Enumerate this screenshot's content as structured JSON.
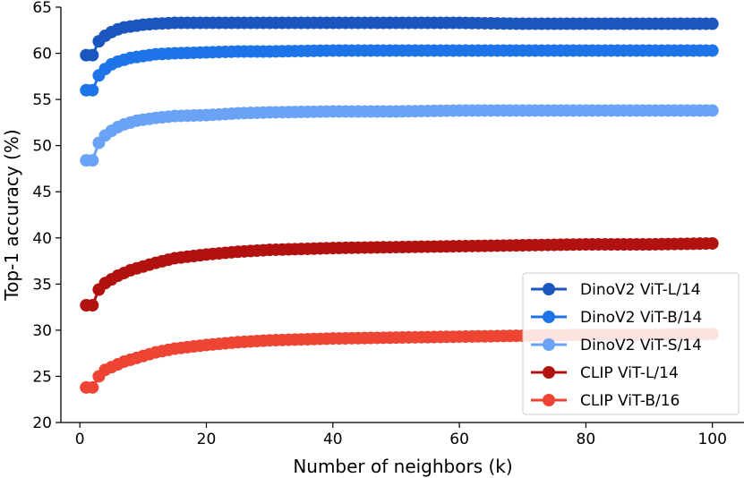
{
  "chart_data": {
    "type": "line",
    "title": "",
    "xlabel": "Number of neighbors (k)",
    "ylabel": "Top-1 accuracy (%)",
    "xlim": [
      -3,
      105
    ],
    "ylim": [
      20,
      65
    ],
    "xticks": [
      0,
      20,
      40,
      60,
      80,
      100
    ],
    "yticks": [
      20,
      25,
      30,
      35,
      40,
      45,
      50,
      55,
      60,
      65
    ],
    "x_tick_labels": [
      "0",
      "20",
      "40",
      "60",
      "80",
      "100"
    ],
    "y_tick_labels": [
      "20",
      "25",
      "30",
      "35",
      "40",
      "45",
      "50",
      "55",
      "60",
      "65"
    ],
    "grid": false,
    "legend_position": "bottom-right",
    "k_values": [
      1,
      2,
      3,
      4,
      5,
      6,
      7,
      8,
      9,
      10,
      12,
      15,
      20,
      25,
      30,
      40,
      50,
      60,
      70,
      80,
      90,
      100
    ],
    "series": [
      {
        "name": "DinoV2 ViT-L/14",
        "color": "#1a56be",
        "values": [
          59.8,
          59.8,
          61.3,
          61.9,
          62.3,
          62.6,
          62.8,
          62.9,
          63.0,
          63.1,
          63.2,
          63.3,
          63.3,
          63.3,
          63.3,
          63.3,
          63.3,
          63.3,
          63.2,
          63.2,
          63.2,
          63.2
        ]
      },
      {
        "name": "DinoV2 ViT-B/14",
        "color": "#1c74e8",
        "values": [
          56.0,
          56.0,
          57.6,
          58.3,
          58.8,
          59.1,
          59.3,
          59.5,
          59.6,
          59.7,
          59.9,
          60.0,
          60.1,
          60.2,
          60.2,
          60.3,
          60.3,
          60.3,
          60.3,
          60.3,
          60.3,
          60.3
        ]
      },
      {
        "name": "DinoV2 ViT-S/14",
        "color": "#6aa3f5",
        "values": [
          48.4,
          48.4,
          50.3,
          51.1,
          51.6,
          52.0,
          52.3,
          52.5,
          52.7,
          52.8,
          53.0,
          53.2,
          53.3,
          53.5,
          53.6,
          53.7,
          53.7,
          53.8,
          53.8,
          53.8,
          53.8,
          53.8
        ]
      },
      {
        "name": "CLIP ViT-L/14",
        "color": "#b1120f",
        "values": [
          32.7,
          32.7,
          34.4,
          35.1,
          35.5,
          35.9,
          36.2,
          36.5,
          36.7,
          36.9,
          37.3,
          37.8,
          38.2,
          38.5,
          38.7,
          38.9,
          39.0,
          39.1,
          39.2,
          39.3,
          39.3,
          39.4
        ]
      },
      {
        "name": "CLIP ViT-B/16",
        "color": "#ee4433",
        "values": [
          23.8,
          23.8,
          25.0,
          25.7,
          26.0,
          26.3,
          26.6,
          26.8,
          27.0,
          27.2,
          27.6,
          28.0,
          28.4,
          28.7,
          28.9,
          29.1,
          29.2,
          29.3,
          29.4,
          29.5,
          29.5,
          29.6
        ]
      }
    ]
  }
}
